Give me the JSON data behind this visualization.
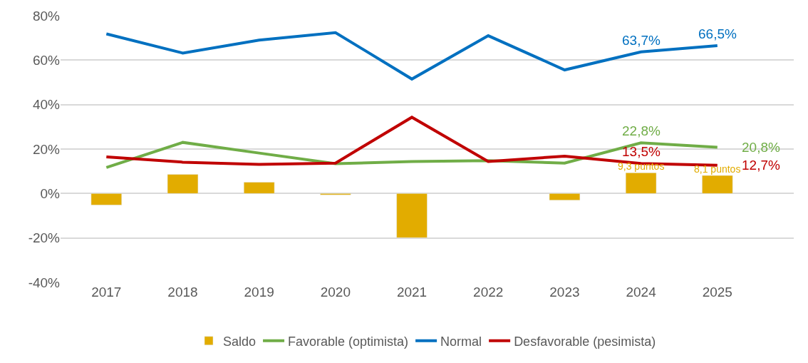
{
  "chart_data": {
    "type": "line",
    "categories": [
      "2017",
      "2018",
      "2019",
      "2020",
      "2021",
      "2022",
      "2023",
      "2024",
      "2025"
    ],
    "series": [
      {
        "name": "Saldo",
        "type": "bar",
        "color": "#e2ac00",
        "values": [
          -5.2,
          8.6,
          5.1,
          -0.6,
          -19.9,
          null,
          -3.0,
          9.3,
          8.1
        ],
        "value_labels": [
          null,
          null,
          null,
          null,
          null,
          null,
          null,
          "9,3 puntos",
          "8,1 puntos"
        ]
      },
      {
        "name": "Favorable (optimista)",
        "color": "#70ad47",
        "values": [
          11.7,
          23.0,
          18.2,
          13.4,
          14.4,
          14.8,
          13.7,
          22.8,
          20.8
        ],
        "value_labels": [
          null,
          null,
          null,
          null,
          null,
          null,
          null,
          "22,8%",
          "20,8%"
        ]
      },
      {
        "name": "Normal",
        "color": "#0070c0",
        "values": [
          71.8,
          63.2,
          69.0,
          72.4,
          51.5,
          71.0,
          55.6,
          63.7,
          66.5
        ],
        "value_labels": [
          null,
          null,
          null,
          null,
          null,
          null,
          null,
          "63,7%",
          "66,5%"
        ]
      },
      {
        "name": "Desfavorable (pesimista)",
        "color": "#c00000",
        "values": [
          16.5,
          14.1,
          13.1,
          13.7,
          34.3,
          14.4,
          16.8,
          13.5,
          12.7
        ],
        "value_labels": [
          null,
          null,
          null,
          null,
          null,
          null,
          null,
          "13,5%",
          "12,7%"
        ]
      }
    ],
    "ylim": [
      -40,
      80
    ],
    "yticks": [
      {
        "value": -40,
        "label": "-40%"
      },
      {
        "value": -20,
        "label": "-20%"
      },
      {
        "value": 0,
        "label": "0%"
      },
      {
        "value": 20,
        "label": "20%"
      },
      {
        "value": 40,
        "label": "40%"
      },
      {
        "value": 60,
        "label": "60%"
      },
      {
        "value": 80,
        "label": "80%"
      }
    ],
    "grid": "y",
    "legend": "bottom",
    "marker": "none",
    "line_style": "solid"
  }
}
